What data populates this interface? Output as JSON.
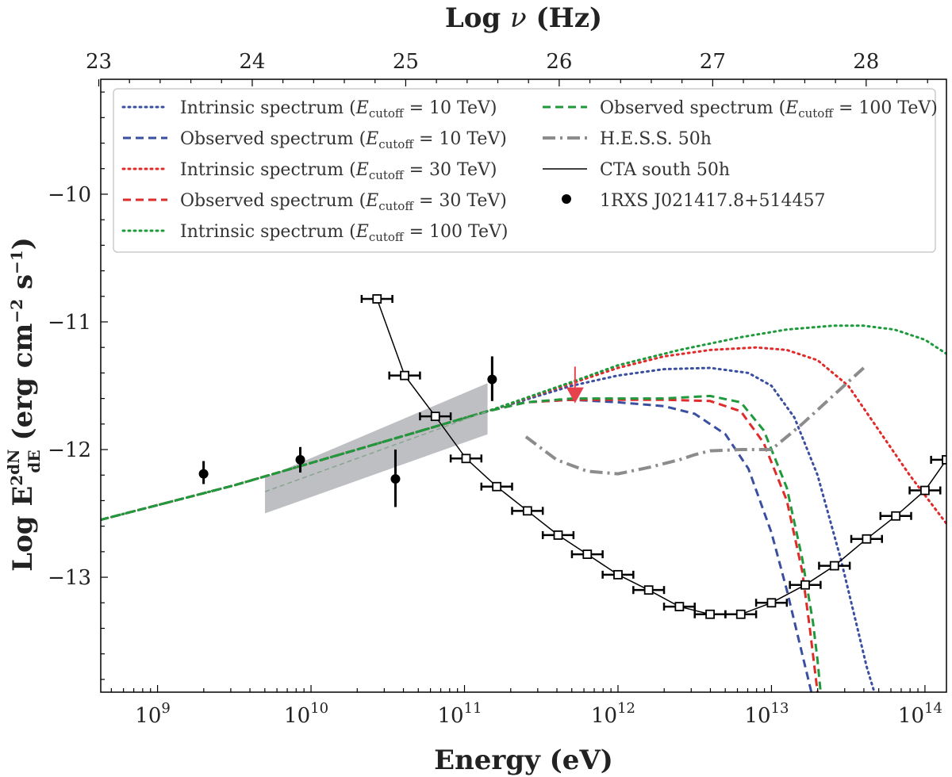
{
  "chart_data": {
    "type": "line",
    "title": "",
    "xlabel": "Energy (eV)",
    "ylabel": "Log E²dN/dE (erg cm⁻² s⁻¹)",
    "top_xlabel": "Log ν (Hz)",
    "xscale": "log",
    "xlim_log10": [
      8.63,
      14.14
    ],
    "ylim": [
      -13.9,
      -9.1
    ],
    "x_ticks": [
      {
        "log": 9,
        "base": "10",
        "exp": "9"
      },
      {
        "log": 10,
        "base": "10",
        "exp": "10"
      },
      {
        "log": 11,
        "base": "10",
        "exp": "11"
      },
      {
        "log": 12,
        "base": "10",
        "exp": "12"
      },
      {
        "log": 13,
        "base": "10",
        "exp": "13"
      },
      {
        "log": 14,
        "base": "10",
        "exp": "14"
      }
    ],
    "y_ticks": [
      {
        "value": -10,
        "label": "−10"
      },
      {
        "value": -11,
        "label": "−11"
      },
      {
        "value": -12,
        "label": "−12"
      },
      {
        "value": -13,
        "label": "−13"
      }
    ],
    "top_ticks": [
      {
        "value": 23,
        "label": "23"
      },
      {
        "value": 24,
        "label": "24"
      },
      {
        "value": 25,
        "label": "25"
      },
      {
        "value": 26,
        "label": "26"
      },
      {
        "value": 27,
        "label": "27"
      },
      {
        "value": 28,
        "label": "28"
      }
    ],
    "freq_offset_log": 14.383,
    "butterfly": {
      "x_log": [
        9.7,
        11.15
      ],
      "upper": [
        -12.22,
        -11.48
      ],
      "lower": [
        -12.5,
        -11.88
      ]
    },
    "series": [
      {
        "name": "Intrinsic spectrum (Ecutoff = 10 TeV)",
        "legend_main": "Intrinsic spectrum (",
        "legend_e": "E",
        "legend_sub": "cutoff",
        "legend_tail": " = 10 TeV)",
        "color": "#3a4fa0",
        "style": "dotted",
        "x_log": [
          8.63,
          9.5,
          10.3,
          11.15,
          11.7,
          12.0,
          12.3,
          12.6,
          12.85,
          13.0,
          13.15,
          13.3,
          13.45,
          13.55,
          13.62,
          13.67
        ],
        "y": [
          -12.55,
          -12.28,
          -12.0,
          -11.7,
          -11.5,
          -11.42,
          -11.37,
          -11.36,
          -11.4,
          -11.5,
          -11.75,
          -12.2,
          -12.85,
          -13.35,
          -13.7,
          -13.9
        ]
      },
      {
        "name": "Observed spectrum (Ecutoff = 10 TeV)",
        "legend_main": "Observed spectrum (",
        "legend_e": "E",
        "legend_sub": "cutoff",
        "legend_tail": " = 10 TeV)",
        "color": "#3a4fa0",
        "style": "dashed",
        "x_log": [
          8.63,
          9.5,
          10.3,
          11.15,
          11.4,
          11.7,
          12.0,
          12.3,
          12.5,
          12.7,
          12.85,
          13.0,
          13.1,
          13.2,
          13.24,
          13.26
        ],
        "y": [
          -12.55,
          -12.28,
          -12.0,
          -11.7,
          -11.63,
          -11.61,
          -11.63,
          -11.66,
          -11.72,
          -11.88,
          -12.15,
          -12.65,
          -13.1,
          -13.6,
          -13.8,
          -13.9
        ]
      },
      {
        "name": "Intrinsic spectrum (Ecutoff = 30 TeV)",
        "legend_main": "Intrinsic spectrum (",
        "legend_e": "E",
        "legend_sub": "cutoff",
        "legend_tail": " = 30 TeV)",
        "color": "#e02b2b",
        "style": "dotted",
        "x_log": [
          8.63,
          9.5,
          10.3,
          11.15,
          11.7,
          12.0,
          12.3,
          12.6,
          12.9,
          13.1,
          13.3,
          13.5,
          13.7,
          13.9,
          14.14
        ],
        "y": [
          -12.55,
          -12.28,
          -12.0,
          -11.7,
          -11.48,
          -11.36,
          -11.27,
          -11.22,
          -11.2,
          -11.22,
          -11.3,
          -11.5,
          -11.85,
          -12.2,
          -12.58
        ]
      },
      {
        "name": "Observed spectrum (Ecutoff = 30 TeV)",
        "legend_main": "Observed spectrum (",
        "legend_e": "E",
        "legend_sub": "cutoff",
        "legend_tail": " = 30 TeV)",
        "color": "#e02b2b",
        "style": "dashed",
        "x_log": [
          8.63,
          9.5,
          10.3,
          11.15,
          11.4,
          11.7,
          12.0,
          12.3,
          12.6,
          12.8,
          12.95,
          13.1,
          13.2,
          13.25,
          13.28,
          13.3
        ],
        "y": [
          -12.55,
          -12.28,
          -12.0,
          -11.7,
          -11.63,
          -11.61,
          -11.61,
          -11.61,
          -11.62,
          -11.7,
          -11.95,
          -12.4,
          -12.95,
          -13.4,
          -13.7,
          -13.9
        ]
      },
      {
        "name": "Intrinsic spectrum (Ecutoff = 100 TeV)",
        "legend_main": "Intrinsic spectrum (",
        "legend_e": "E",
        "legend_sub": "cutoff",
        "legend_tail": " = 100 TeV)",
        "color": "#1e9a3c",
        "style": "dotted",
        "x_log": [
          8.63,
          9.5,
          10.3,
          11.15,
          11.7,
          12.0,
          12.4,
          12.8,
          13.1,
          13.4,
          13.6,
          13.8,
          14.0,
          14.14
        ],
        "y": [
          -12.55,
          -12.28,
          -12.0,
          -11.7,
          -11.47,
          -11.34,
          -11.22,
          -11.12,
          -11.06,
          -11.03,
          -11.03,
          -11.06,
          -11.14,
          -11.25
        ]
      },
      {
        "name": "Observed spectrum (Ecutoff = 100 TeV)",
        "legend_main": "Observed spectrum (",
        "legend_e": "E",
        "legend_sub": "cutoff",
        "legend_tail": " = 100 TeV)",
        "color": "#1e9a3c",
        "style": "dashed",
        "x_log": [
          8.63,
          9.5,
          10.3,
          11.15,
          11.4,
          11.7,
          12.0,
          12.3,
          12.6,
          12.8,
          12.95,
          13.1,
          13.2,
          13.27,
          13.3,
          13.32
        ],
        "y": [
          -12.55,
          -12.28,
          -12.0,
          -11.7,
          -11.63,
          -11.6,
          -11.6,
          -11.6,
          -11.58,
          -11.63,
          -11.85,
          -12.3,
          -12.85,
          -13.35,
          -13.65,
          -13.9
        ]
      },
      {
        "name": "H.E.S.S. 50h",
        "legend_main": "H.E.S.S. 50h",
        "color": "#8c8c8c",
        "style": "dashdot",
        "x_log": [
          11.4,
          11.6,
          11.8,
          12.0,
          12.2,
          12.4,
          12.5,
          12.6,
          12.8,
          13.0,
          13.2,
          13.4,
          13.61
        ],
        "y": [
          -11.9,
          -12.08,
          -12.17,
          -12.19,
          -12.14,
          -12.08,
          -12.04,
          -12.01,
          -12.0,
          -12.0,
          -11.8,
          -11.58,
          -11.35
        ]
      }
    ],
    "cta": {
      "name": "CTA south 50h",
      "legend_main": "CTA south 50h",
      "color": "#000000",
      "x_log": [
        10.43,
        10.61,
        10.81,
        11.01,
        11.21,
        11.41,
        11.61,
        11.8,
        12.0,
        12.2,
        12.4,
        12.6,
        12.8,
        13.0,
        13.22,
        13.41,
        13.62,
        13.81,
        14.0,
        14.14
      ],
      "y": [
        -10.82,
        -11.42,
        -11.74,
        -12.07,
        -12.29,
        -12.48,
        -12.67,
        -12.82,
        -12.98,
        -13.1,
        -13.23,
        -13.29,
        -13.29,
        -13.2,
        -13.06,
        -12.91,
        -12.7,
        -12.52,
        -12.32,
        -12.08
      ],
      "x_err_dex": 0.1
    },
    "data_points": {
      "name": "1RXS J021417.8+514457",
      "legend_main": "1RXS J021417.8+514457",
      "color": "#000000",
      "x_log": [
        9.3,
        9.93,
        10.55,
        11.18
      ],
      "y": [
        -12.19,
        -12.08,
        -12.23,
        -11.45
      ],
      "y_lo": [
        -12.27,
        -12.18,
        -12.45,
        -11.62
      ],
      "y_hi": [
        -12.09,
        -11.98,
        -12.0,
        -11.27
      ]
    },
    "arrow": {
      "x_log": 11.72,
      "y_top": -11.35,
      "y_bottom": -11.6,
      "color": "#e8414e"
    },
    "legend_position": "top-left"
  }
}
